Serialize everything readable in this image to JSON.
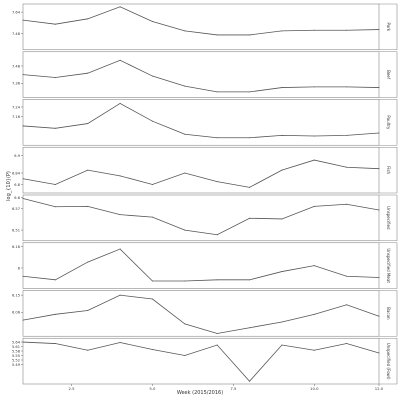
{
  "chart_data": {
    "type": "line",
    "xlabel": "Week (2015/2016)",
    "ylabel": "log_{10}(P)",
    "xlim": [
      1,
      12
    ],
    "xticks": [
      "2.5",
      "5.0",
      "7.5",
      "10.0",
      "12.0"
    ],
    "xtick_values": [
      2.5,
      5.0,
      7.5,
      10.0,
      12.0
    ],
    "grid": false,
    "line_color": "#555555",
    "x": [
      1,
      2,
      3,
      4,
      5,
      6,
      7,
      8,
      9,
      10,
      11,
      12
    ],
    "panels": [
      {
        "name": "Pork",
        "ylim": [
          7.38,
          7.68
        ],
        "yticks": [
          "7.64",
          "7.48"
        ],
        "ytick_values": [
          7.64,
          7.48
        ],
        "values": [
          7.58,
          7.55,
          7.59,
          7.68,
          7.57,
          7.5,
          7.47,
          7.47,
          7.5,
          7.505,
          7.505,
          7.51
        ]
      },
      {
        "name": "Beef",
        "ylim": [
          7.28,
          7.56
        ],
        "yticks": [
          "7.48",
          "7.36"
        ],
        "ytick_values": [
          7.48,
          7.36
        ],
        "values": [
          7.42,
          7.4,
          7.43,
          7.52,
          7.41,
          7.34,
          7.3,
          7.3,
          7.33,
          7.335,
          7.335,
          7.33
        ]
      },
      {
        "name": "Poultry",
        "ylim": [
          6.94,
          7.28
        ],
        "yticks": [
          "7.24",
          "7.16"
        ],
        "ytick_values": [
          7.24,
          7.16
        ],
        "values": [
          7.08,
          7.06,
          7.1,
          7.27,
          7.12,
          7.01,
          6.98,
          6.98,
          7.0,
          6.995,
          7.0,
          7.02
        ]
      },
      {
        "name": "Fish",
        "ylim": [
          6.78,
          6.92
        ],
        "yticks": [
          "6.9",
          "6.84",
          "6.8"
        ],
        "ytick_values": [
          6.9,
          6.84,
          6.8
        ],
        "values": [
          6.82,
          6.8,
          6.85,
          6.83,
          6.8,
          6.84,
          6.81,
          6.79,
          6.85,
          6.885,
          6.86,
          6.855
        ]
      },
      {
        "name": "Unspecified",
        "ylim": [
          6.488,
          6.6
        ],
        "yticks": [
          "6.6",
          "6.57",
          "6.51"
        ],
        "ytick_values": [
          6.6,
          6.57,
          6.51
        ],
        "values": [
          6.598,
          6.575,
          6.576,
          6.553,
          6.546,
          6.51,
          6.497,
          6.543,
          6.541,
          6.576,
          6.582,
          6.566
        ]
      },
      {
        "name": "Unspecified Meat",
        "ylim": [
          5.85,
          6.19
        ],
        "yticks": [
          "6.18",
          "6"
        ],
        "ytick_values": [
          6.18,
          6.0
        ],
        "values": [
          5.93,
          5.9,
          6.05,
          6.16,
          5.89,
          5.89,
          5.9,
          5.9,
          5.97,
          6.02,
          5.93,
          5.92
        ]
      },
      {
        "name": "Bacon",
        "ylim": [
          5.95,
          6.16
        ],
        "yticks": [
          "6.15",
          "6.06"
        ],
        "ytick_values": [
          6.15,
          6.06
        ],
        "values": [
          6.02,
          6.05,
          6.07,
          6.15,
          6.13,
          6.0,
          5.95,
          5.98,
          6.01,
          6.05,
          6.1,
          6.04
        ]
      },
      {
        "name": "Unspecified (Fowl)",
        "ylim": [
          5.378,
          5.647
        ],
        "yticks": [
          "5.64",
          "5.61",
          "5.58",
          "5.55",
          "5.52",
          "5.49"
        ],
        "ytick_values": [
          5.64,
          5.61,
          5.58,
          5.55,
          5.52,
          5.49
        ],
        "values": [
          5.64,
          5.63,
          5.585,
          5.637,
          5.59,
          5.55,
          5.62,
          5.378,
          5.62,
          5.585,
          5.63,
          5.567
        ]
      }
    ]
  }
}
